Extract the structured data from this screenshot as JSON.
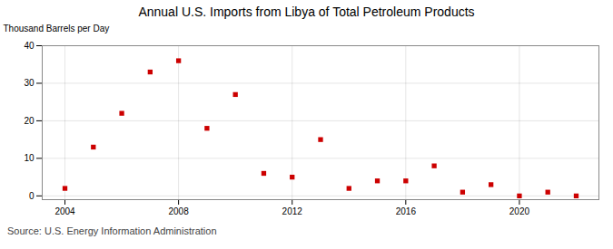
{
  "chart_data": {
    "type": "scatter",
    "title": "Annual U.S. Imports from Libya of Total Petroleum Products",
    "ylabel": "Thousand Barrels per Day",
    "source": "Source: U.S. Energy Information Administration",
    "x": [
      2004,
      2005,
      2006,
      2007,
      2008,
      2009,
      2010,
      2011,
      2012,
      2013,
      2014,
      2015,
      2016,
      2017,
      2018,
      2019,
      2020,
      2021,
      2022
    ],
    "values": [
      2,
      13,
      22,
      33,
      36,
      18,
      27,
      6,
      5,
      15,
      2,
      4,
      4,
      8,
      1,
      3,
      0,
      1,
      0
    ],
    "color": "#cc0000",
    "marker": "square",
    "xlim": [
      2003.2,
      2022.8
    ],
    "ylim": [
      -1,
      40
    ],
    "xticks": [
      2004,
      2008,
      2012,
      2016,
      2020
    ],
    "yticks": [
      0,
      10,
      20,
      30,
      40
    ],
    "grid": true
  }
}
